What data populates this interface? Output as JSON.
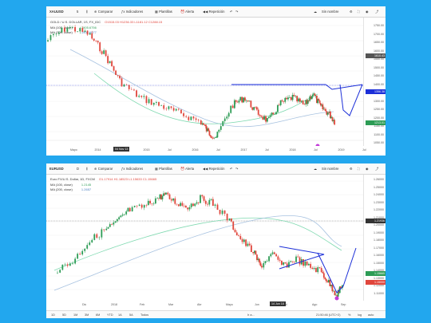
{
  "panel1": {
    "toolbar": {
      "symbol": "XAUUSD",
      "interval": "5",
      "compare": "Comparar",
      "indicators": "Indicadores",
      "templates": "Plantillas",
      "alert": "Alerta",
      "replay": "Repetición",
      "unnamed": "Sin nombre"
    },
    "legend": {
      "title": "GOLD / U.S. DOLLAR, 1S, FX_IDC",
      "ohlc": "O1515.03 H1236.33 L1181.12 C1288.15",
      "ma1": "MA (100, close)",
      "ma1_val": "1905.6756",
      "ma2": "MA (300, close)",
      "ma2_val": "1906.6077"
    },
    "price_labels": [
      "1750.00",
      "1700.00",
      "1650.00",
      "1600.00",
      "1550.00",
      "1500.00",
      "1450.00",
      "1400.00",
      "1350.00",
      "1300.00",
      "1250.00",
      "1200.00",
      "1150.00",
      "1100.00",
      "1050.00"
    ],
    "tags": {
      "top": "1610.43",
      "mid": "1356.38",
      "low": "1213.01"
    },
    "x_labels": [
      "Mayo",
      "2014",
      "Sep",
      "2015",
      "Jul",
      "2016",
      "Jul",
      "2017",
      "Jul",
      "2018",
      "Jul",
      "2019",
      "Jul"
    ],
    "x_tag": "04 Nov 13",
    "colors": {
      "up": "#2d9c55",
      "down": "#e0463c",
      "trend": "#1c2fd8",
      "ma1": "#7fd9b0",
      "ma2": "#a7c2e0"
    }
  },
  "panel2": {
    "toolbar": {
      "symbol": "EURUSD",
      "interval": "D",
      "compare": "Comparar",
      "indicators": "Indicadores",
      "templates": "Plantillas",
      "alert": "Alerta",
      "replay": "Repetición",
      "unnamed": "Sin nombre"
    },
    "legend": {
      "title": "Euro FX/U.S. Dollar, 1D, FXCM",
      "ohlc": "O1.17914 H1.18523 L1.15633 C1.15665",
      "ma1": "MA (100, close)",
      "ma1_val": "1.2145",
      "ma2": "MA (200, close)",
      "ma2_val": "1.2657"
    },
    "price_labels": [
      "1.26000",
      "1.25000",
      "1.24000",
      "1.23000",
      "1.22000",
      "1.21000",
      "1.20000",
      "1.19000",
      "1.18000",
      "1.17000",
      "1.16000",
      "1.15000",
      "1.14000",
      "1.13000",
      "1.12000",
      "1.11000"
    ],
    "tags": {
      "a": "1.21936",
      "b": "1.15665",
      "c": "1.15000"
    },
    "x_labels": [
      "Dic",
      "2018",
      "Feb",
      "Mar",
      "Abr",
      "Mayo",
      "Jun",
      "Jul",
      "Ago",
      "Sep"
    ],
    "x_tag": "14 Jun 18",
    "bottom": {
      "ranges": [
        "1D",
        "5D",
        "1M",
        "3M",
        "6M",
        "YTD",
        "1A",
        "5A",
        "Todos"
      ],
      "goto": "Ir a...",
      "time": "21:50:46 (UTC+2)",
      "pct": "%",
      "log": "log",
      "auto": "auto"
    }
  }
}
